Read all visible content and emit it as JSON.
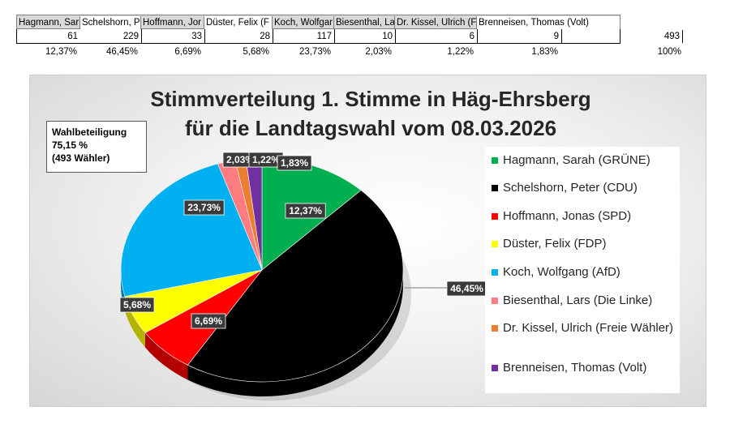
{
  "sheet": {
    "headers": [
      "Hagmann, Sar",
      "Schelshorn, Pe",
      "Hoffmann, Jor",
      "Düster, Felix (F",
      "Koch, Wolfgar",
      "Biesenthal, La",
      "Dr. Kissel, Ulrich (F",
      "Brenneisen, Thomas (Volt)"
    ],
    "counts": [
      "61",
      "229",
      "33",
      "28",
      "117",
      "10",
      "6",
      "9"
    ],
    "percents": [
      "12,37%",
      "46,45%",
      "6,69%",
      "5,68%",
      "23,73%",
      "2,03%",
      "1,22%",
      "1,83%"
    ],
    "total_count": "493",
    "total_percent": "100%"
  },
  "turnout": {
    "line1": "Wahlbeteiligung",
    "line2": "75,15 %",
    "line3": "(493 Wähler)"
  },
  "chart_data": {
    "type": "pie",
    "title_line1": "Stimmverteilung 1. Stimme in Häg-Ehrsberg",
    "title_line2": "für die Landtagswahl vom 08.03.2026",
    "categories": [
      "Hagmann, Sarah (GRÜNE)",
      "Schelshorn, Peter (CDU)",
      "Hoffmann, Jonas (SPD)",
      "Düster, Felix (FDP)",
      "Koch, Wolfgang (AfD)",
      "Biesenthal, Lars (Die Linke)",
      "Dr. Kissel, Ulrich (Freie Wähler)",
      "Brenneisen, Thomas (Volt)"
    ],
    "values": [
      61,
      229,
      33,
      28,
      117,
      10,
      6,
      9
    ],
    "data_labels": [
      "12,37%",
      "46,45%",
      "6,69%",
      "5,68%",
      "23,73%",
      "2,03%",
      "1,22%",
      "1,83%"
    ],
    "colors": [
      "#00b050",
      "#000000",
      "#ff0000",
      "#ffff00",
      "#00b0f0",
      "#ff7c80",
      "#ed7d31",
      "#7030a0"
    ],
    "legend_position": "right"
  }
}
